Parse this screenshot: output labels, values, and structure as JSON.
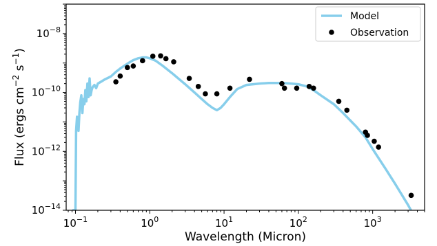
{
  "chart_data": {
    "type": "line",
    "x_scale": "log",
    "y_scale": "log",
    "xlabel": "Wavelength (Micron)",
    "ylabel_parts": [
      "Flux (ergs cm",
      "−2",
      " s",
      "−1",
      ")"
    ],
    "xlim": [
      0.075,
      5000
    ],
    "ylim": [
      1e-14,
      1e-07
    ],
    "x_ticks": [
      {
        "value": 0.1,
        "base": "10",
        "exp": "−1"
      },
      {
        "value": 1,
        "base": "10",
        "exp": "0"
      },
      {
        "value": 10,
        "base": "10",
        "exp": "1"
      },
      {
        "value": 100,
        "base": "10",
        "exp": "2"
      },
      {
        "value": 1000,
        "base": "10",
        "exp": "3"
      }
    ],
    "y_ticks": [
      {
        "value": 1e-14,
        "base": "10",
        "exp": "−14"
      },
      {
        "value": 1e-12,
        "base": "10",
        "exp": "−12"
      },
      {
        "value": 1e-10,
        "base": "10",
        "exp": "−10"
      },
      {
        "value": 1e-08,
        "base": "10",
        "exp": "−8"
      }
    ],
    "legend_position": "top-right",
    "colors": {
      "model": "#87ceeb",
      "observation": "#000000"
    },
    "series": [
      {
        "name": "Model",
        "kind": "line",
        "x": [
          0.091,
          0.094,
          0.097,
          0.1,
          0.102,
          0.105,
          0.108,
          0.11,
          0.113,
          0.116,
          0.12,
          0.124,
          0.128,
          0.132,
          0.136,
          0.14,
          0.145,
          0.15,
          0.155,
          0.16,
          0.165,
          0.17,
          0.18,
          0.19,
          0.2,
          0.22,
          0.25,
          0.3,
          0.35,
          0.4,
          0.5,
          0.6,
          0.7,
          0.8,
          0.9,
          1.0,
          1.2,
          1.5,
          2.0,
          2.5,
          3.0,
          4.0,
          5.0,
          6.0,
          7.0,
          8.0,
          9.0,
          10,
          12,
          15,
          20,
          30,
          40,
          60,
          80,
          100,
          130,
          160,
          200,
          300,
          400,
          600,
          800,
          1000,
          1500,
          2000,
          3000,
          4000
        ],
        "y": [
          1e-14,
          1e-14,
          1e-14,
          1e-14,
          5e-12,
          1.5e-11,
          1e-11,
          5e-12,
          2e-11,
          4.5e-11,
          8e-11,
          2e-11,
          6e-11,
          4e-11,
          1.2e-10,
          5e-11,
          2e-10,
          7e-11,
          3e-10,
          8e-11,
          1.2e-10,
          1.5e-10,
          1.8e-10,
          1.4e-10,
          2e-10,
          2.3e-10,
          2.8e-10,
          3.5e-10,
          5e-10,
          6.5e-10,
          9.5e-10,
          1.25e-09,
          1.45e-09,
          1.55e-09,
          1.55e-09,
          1.45e-09,
          1.2e-09,
          8e-10,
          4.5e-10,
          2.8e-10,
          1.9e-10,
          1e-10,
          6e-11,
          4e-11,
          3e-11,
          2.5e-11,
          3e-11,
          4e-11,
          7e-11,
          1.3e-10,
          1.8e-10,
          2e-10,
          2.1e-10,
          2.1e-10,
          2e-10,
          1.9e-10,
          1.6e-10,
          1.2e-10,
          8e-11,
          4e-11,
          2e-11,
          7e-12,
          3e-12,
          1.2e-12,
          2.5e-13,
          8e-14,
          1.5e-14,
          4e-15
        ]
      },
      {
        "name": "Observation",
        "kind": "scatter",
        "x": [
          0.35,
          0.4,
          0.5,
          0.6,
          0.8,
          1.1,
          1.4,
          1.65,
          2.1,
          3.4,
          4.5,
          5.6,
          8.0,
          12,
          22,
          60,
          65,
          95,
          140,
          160,
          350,
          450,
          800,
          850,
          1050,
          1200,
          3300
        ],
        "y": [
          2.3e-10,
          3.6e-10,
          7e-10,
          7.9e-10,
          1.2e-09,
          1.7e-09,
          1.75e-09,
          1.4e-09,
          1.1e-09,
          3e-10,
          1.6e-10,
          9e-11,
          9e-11,
          1.4e-10,
          2.8e-10,
          2e-10,
          1.4e-10,
          1.4e-10,
          1.6e-10,
          1.4e-10,
          5e-11,
          2.5e-11,
          4.5e-12,
          3.5e-12,
          2.2e-12,
          1.4e-12,
          3.2e-14
        ]
      }
    ]
  }
}
